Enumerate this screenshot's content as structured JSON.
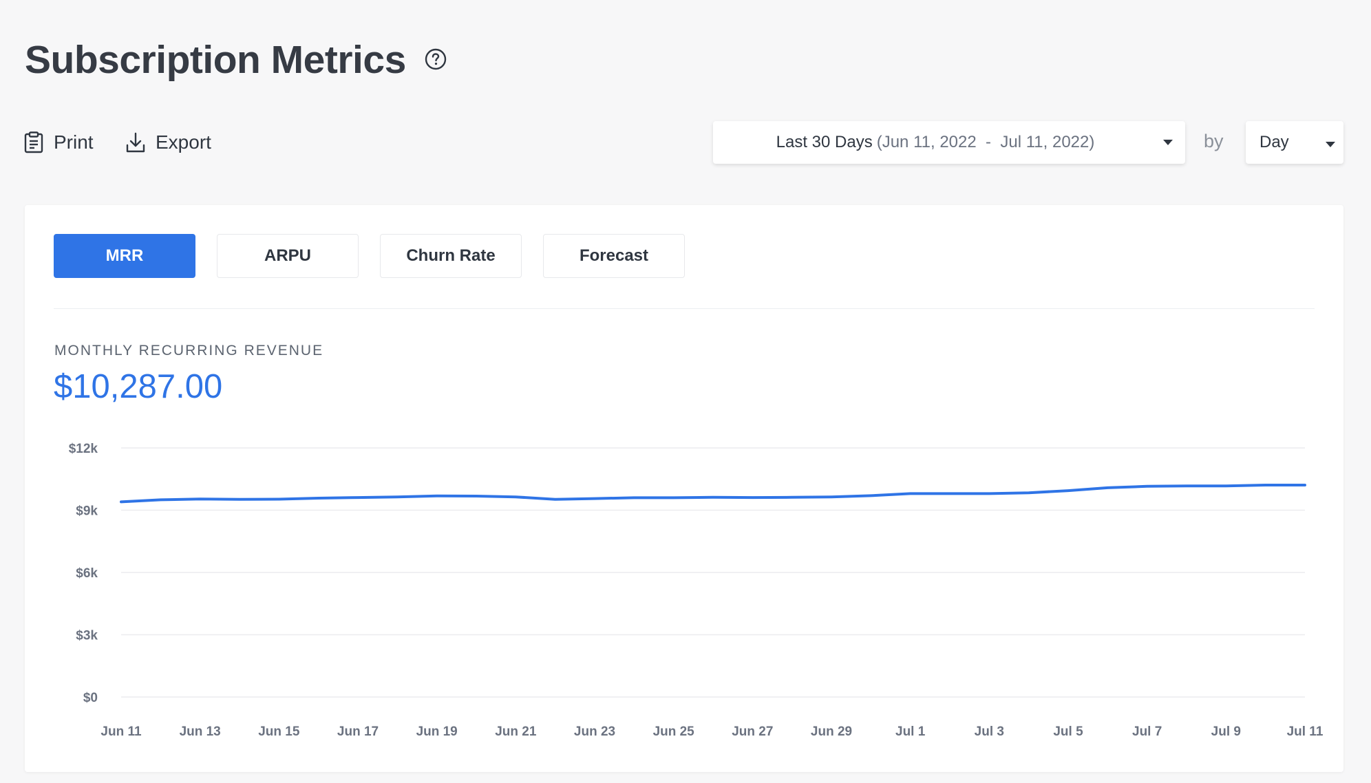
{
  "header": {
    "title": "Subscription Metrics",
    "help_icon": "question-circle-icon"
  },
  "toolbar": {
    "print_label": "Print",
    "print_icon": "clipboard-icon",
    "export_label": "Export",
    "export_icon": "download-icon"
  },
  "filters": {
    "range_label": "Last 30 Days",
    "range_dates": "(Jun 11, 2022  -  Jul 11, 2022)",
    "by_label": "by",
    "unit_label": "Day"
  },
  "tabs": [
    {
      "label": "MRR",
      "active": true
    },
    {
      "label": "ARPU",
      "active": false
    },
    {
      "label": "Churn Rate",
      "active": false
    },
    {
      "label": "Forecast",
      "active": false
    }
  ],
  "metric": {
    "label": "MONTHLY RECURRING REVENUE",
    "value": "$10,287.00"
  },
  "colors": {
    "accent": "#2f74e6",
    "grid": "#ececef"
  },
  "chart_data": {
    "type": "line",
    "title": "",
    "xlabel": "",
    "ylabel": "",
    "ylim": [
      0,
      12000
    ],
    "y_ticks": [
      {
        "value": 0,
        "label": "$0"
      },
      {
        "value": 3000,
        "label": "$3k"
      },
      {
        "value": 6000,
        "label": "$6k"
      },
      {
        "value": 9000,
        "label": "$9k"
      },
      {
        "value": 12000,
        "label": "$12k"
      }
    ],
    "x_tick_labels": [
      "Jun 11",
      "Jun 13",
      "Jun 15",
      "Jun 17",
      "Jun 19",
      "Jun 21",
      "Jun 23",
      "Jun 25",
      "Jun 27",
      "Jun 29",
      "Jul 1",
      "Jul 3",
      "Jul 5",
      "Jul 7",
      "Jul 9",
      "Jul 11"
    ],
    "x": [
      "Jun 11",
      "Jun 12",
      "Jun 13",
      "Jun 14",
      "Jun 15",
      "Jun 16",
      "Jun 17",
      "Jun 18",
      "Jun 19",
      "Jun 20",
      "Jun 21",
      "Jun 22",
      "Jun 23",
      "Jun 24",
      "Jun 25",
      "Jun 26",
      "Jun 27",
      "Jun 28",
      "Jun 29",
      "Jun 30",
      "Jul 1",
      "Jul 2",
      "Jul 3",
      "Jul 4",
      "Jul 5",
      "Jul 6",
      "Jul 7",
      "Jul 8",
      "Jul 9",
      "Jul 10",
      "Jul 11"
    ],
    "series": [
      {
        "values": [
          9400,
          9500,
          9540,
          9520,
          9530,
          9580,
          9610,
          9640,
          9690,
          9680,
          9640,
          9520,
          9560,
          9600,
          9600,
          9620,
          9610,
          9620,
          9640,
          9700,
          9800,
          9800,
          9800,
          9840,
          9940,
          10080,
          10150,
          10170,
          10170,
          10210,
          10210
        ]
      }
    ],
    "grid": true,
    "legend": "none"
  }
}
